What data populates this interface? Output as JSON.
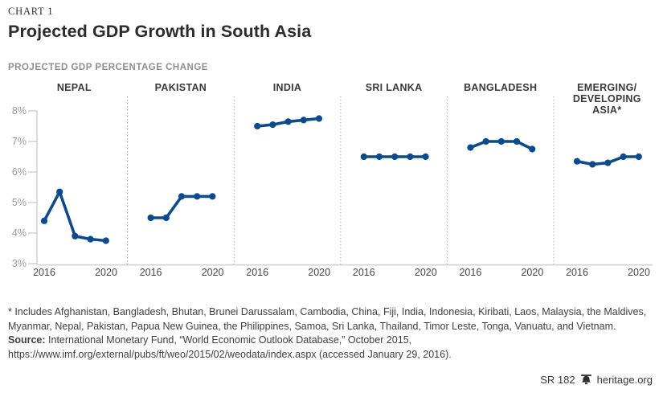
{
  "header": {
    "chart_label": "CHART 1",
    "title": "Projected GDP Growth in South Asia",
    "subtitle": "PROJECTED GDP PERCENTAGE CHANGE"
  },
  "chart_data": {
    "type": "line",
    "title": "Projected GDP Growth in South Asia",
    "ylabel": "PROJECTED GDP PERCENTAGE CHANGE",
    "xlabel": "",
    "x": [
      2016,
      2017,
      2018,
      2019,
      2020
    ],
    "x_first_label": "2016",
    "x_last_label": "2020",
    "ylim": [
      3,
      8
    ],
    "yticks": [
      8,
      7,
      6,
      5,
      4,
      3
    ],
    "ytick_labels": [
      "8%",
      "7%",
      "6%",
      "5%",
      "4%",
      "3%"
    ],
    "grid": "no gridlines; left axis ticks, bottom baseline, dotted panel separators",
    "legend": "none (small multiples, one panel per series)",
    "line_color": "#0d4a8c",
    "panels": [
      {
        "label": "NEPAL",
        "values": [
          4.4,
          5.35,
          3.9,
          3.8,
          3.75
        ]
      },
      {
        "label": "PAKISTAN",
        "values": [
          4.5,
          4.5,
          5.2,
          5.2,
          5.2
        ]
      },
      {
        "label": "INDIA",
        "values": [
          7.5,
          7.55,
          7.65,
          7.7,
          7.75
        ]
      },
      {
        "label": "SRI LANKA",
        "values": [
          6.5,
          6.5,
          6.5,
          6.5,
          6.5
        ]
      },
      {
        "label": "BANGLADESH",
        "values": [
          6.8,
          7.0,
          7.0,
          7.0,
          6.75
        ]
      },
      {
        "label": "EMERGING/ DEVELOPING ASIA*",
        "values": [
          6.35,
          6.25,
          6.3,
          6.5,
          6.5
        ]
      }
    ]
  },
  "footnote": {
    "asterisk_note": "* Includes Afghanistan, Bangladesh, Bhutan, Brunei Darussalam, Cambodia, China, Fiji, India, Indonesia, Kiribati, Laos, Malaysia, the Maldives, Myanmar, Nepal, Pakistan, Papua New Guinea, the Philippines, Samoa, Sri Lanka, Thailand, Timor Leste, Tonga, Vanuatu, and Vietnam.",
    "source_label": "Source:",
    "source_text": "International Monetary Fund, “World Economic Outlook Database,” October 2015, https://www.imf.org/external/pubs/ft/weo/2015/02/weodata/index.aspx (accessed January 29, 2016)."
  },
  "footer": {
    "report_id": "SR 182",
    "site": "heritage.org",
    "logo_icon": "liberty-bell-icon"
  }
}
